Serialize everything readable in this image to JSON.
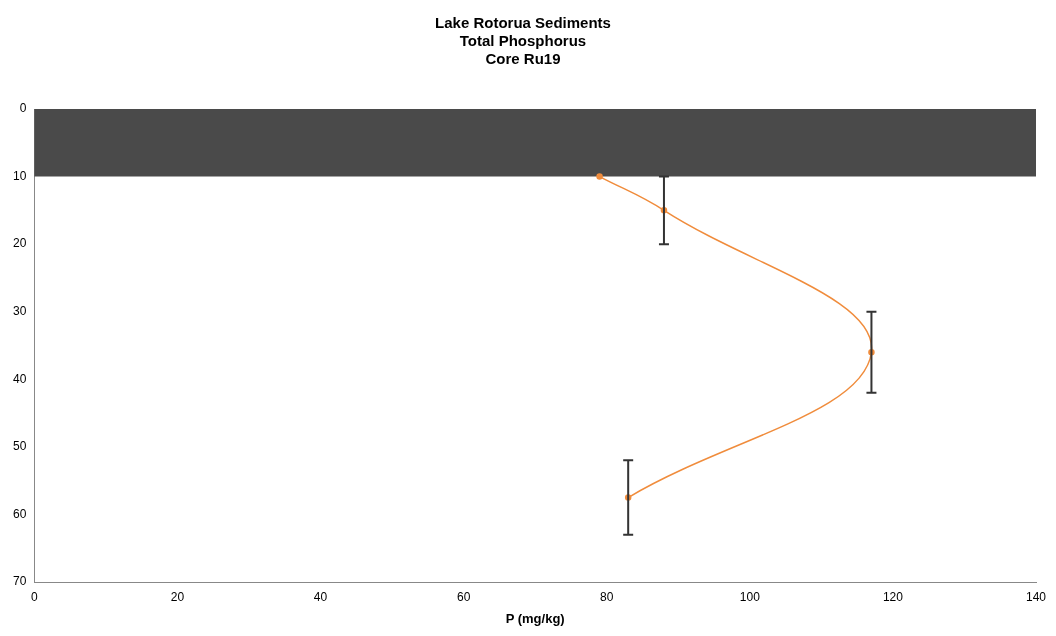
{
  "chart_data": {
    "type": "line",
    "title": "Lake Rotorua Sediments\nTotal Phosphorus\nCore Ru19",
    "xlabel": "P (mg/kg)",
    "x": [
      79,
      88,
      117,
      83
    ],
    "series": [
      {
        "color": "#f08c3c",
        "values": [
          10,
          15,
          36,
          57.5
        ],
        "errors": [
          null,
          5,
          6,
          5.5
        ]
      }
    ],
    "xlim": [
      0,
      140
    ],
    "xticks": [
      0,
      20,
      40,
      60,
      80,
      100,
      120,
      140
    ],
    "ylim": [
      70,
      0
    ],
    "yticks": [
      0,
      10,
      20,
      30,
      40,
      50,
      60,
      70
    ],
    "bands": [
      {
        "axis": "y",
        "from": 0,
        "to": 10,
        "color": "#4a4a4a"
      }
    ],
    "grid": false,
    "legend": false,
    "marker": "circle",
    "line_style": "solid"
  }
}
